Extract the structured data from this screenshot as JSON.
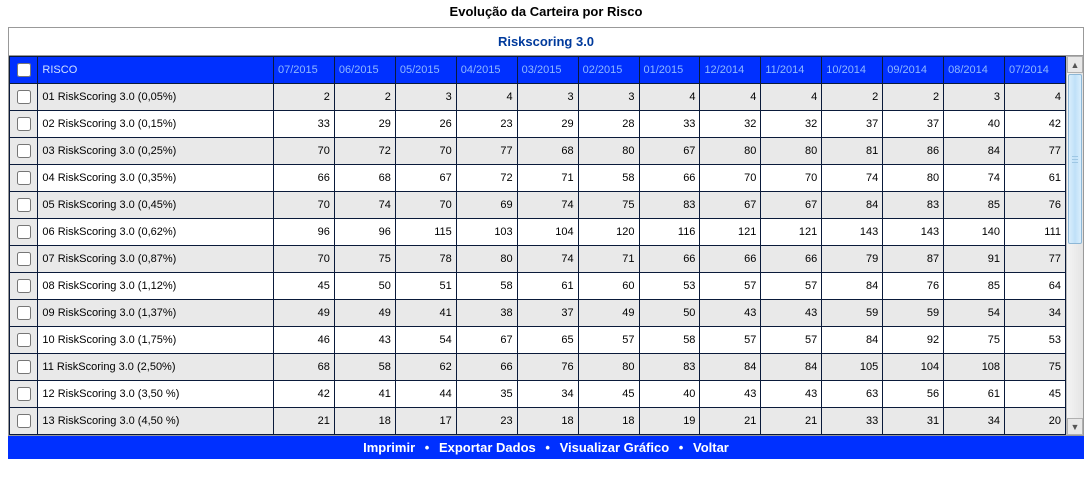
{
  "page": {
    "title": "Evolução da Carteira por Risco",
    "subtitle": "Riskscoring 3.0"
  },
  "table": {
    "header_label": "RISCO",
    "columns": [
      "07/2015",
      "06/2015",
      "05/2015",
      "04/2015",
      "03/2015",
      "02/2015",
      "01/2015",
      "12/2014",
      "11/2014",
      "10/2014",
      "09/2014",
      "08/2014",
      "07/2014"
    ],
    "rows": [
      {
        "label": "01 RiskScoring 3.0 (0,05%)",
        "vals": [
          2,
          2,
          3,
          4,
          3,
          3,
          4,
          4,
          4,
          2,
          2,
          3,
          4
        ]
      },
      {
        "label": "02 RiskScoring 3.0 (0,15%)",
        "vals": [
          33,
          29,
          26,
          23,
          29,
          28,
          33,
          32,
          32,
          37,
          37,
          40,
          42
        ]
      },
      {
        "label": "03 RiskScoring 3.0 (0,25%)",
        "vals": [
          70,
          72,
          70,
          77,
          68,
          80,
          67,
          80,
          80,
          81,
          86,
          84,
          77
        ]
      },
      {
        "label": "04 RiskScoring 3.0 (0,35%)",
        "vals": [
          66,
          68,
          67,
          72,
          71,
          58,
          66,
          70,
          70,
          74,
          80,
          74,
          61
        ]
      },
      {
        "label": "05 RiskScoring 3.0 (0,45%)",
        "vals": [
          70,
          74,
          70,
          69,
          74,
          75,
          83,
          67,
          67,
          84,
          83,
          85,
          76
        ]
      },
      {
        "label": "06 RiskScoring 3.0 (0,62%)",
        "vals": [
          96,
          96,
          115,
          103,
          104,
          120,
          116,
          121,
          121,
          143,
          143,
          140,
          111
        ]
      },
      {
        "label": "07 RiskScoring 3.0 (0,87%)",
        "vals": [
          70,
          75,
          78,
          80,
          74,
          71,
          66,
          66,
          66,
          79,
          87,
          91,
          77
        ]
      },
      {
        "label": "08 RiskScoring 3.0 (1,12%)",
        "vals": [
          45,
          50,
          51,
          58,
          61,
          60,
          53,
          57,
          57,
          84,
          76,
          85,
          64
        ]
      },
      {
        "label": "09 RiskScoring 3.0 (1,37%)",
        "vals": [
          49,
          49,
          41,
          38,
          37,
          49,
          50,
          43,
          43,
          59,
          59,
          54,
          34
        ]
      },
      {
        "label": "10 RiskScoring 3.0 (1,75%)",
        "vals": [
          46,
          43,
          54,
          67,
          65,
          57,
          58,
          57,
          57,
          84,
          92,
          75,
          53
        ]
      },
      {
        "label": "11 RiskScoring 3.0 (2,50%)",
        "vals": [
          68,
          58,
          62,
          66,
          76,
          80,
          83,
          84,
          84,
          105,
          104,
          108,
          75
        ]
      },
      {
        "label": "12 RiskScoring 3.0 (3,50 %)",
        "vals": [
          42,
          41,
          44,
          35,
          34,
          45,
          40,
          43,
          43,
          63,
          56,
          61,
          45
        ]
      },
      {
        "label": "13 RiskScoring 3.0 (4,50 %)",
        "vals": [
          21,
          18,
          17,
          23,
          18,
          18,
          19,
          21,
          21,
          33,
          31,
          34,
          20
        ]
      }
    ]
  },
  "footer": {
    "items": [
      "Imprimir",
      "Exportar Dados",
      "Visualizar Gráfico",
      "Voltar"
    ]
  },
  "colors": {
    "header_bg": "#0030ff",
    "header_fg_dim": "#8fb8ff",
    "header_fg_bright": "#cfe0ff",
    "row_even_bg": "#e9e9e9",
    "row_odd_bg": "#ffffff",
    "border": "#0a1a3a",
    "footer_bg": "#0030ff",
    "footer_fg": "#ffffff",
    "subtitle_fg": "#003a9c"
  }
}
